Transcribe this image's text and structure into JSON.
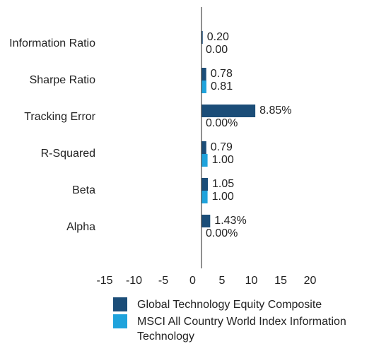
{
  "chart_data": {
    "type": "bar",
    "orientation": "horizontal",
    "categories": [
      "Information Ratio",
      "Sharpe Ratio",
      "Tracking Error",
      "R-Squared",
      "Beta",
      "Alpha"
    ],
    "series": [
      {
        "name": "Global Technology Equity Composite",
        "color": "#1b4d78",
        "values": [
          0.2,
          0.78,
          8.85,
          0.79,
          1.05,
          1.43
        ],
        "value_labels": [
          "0.20",
          "0.78",
          "8.85%",
          "0.79",
          "1.05",
          "1.43%"
        ]
      },
      {
        "name": "MSCI All Country World Index Information Technology",
        "color": "#1fa3dc",
        "values": [
          0.0,
          0.81,
          0.0,
          1.0,
          1.0,
          0.0
        ],
        "value_labels": [
          "0.00",
          "0.81",
          "0.00%",
          "1.00",
          "1.00",
          "0.00%"
        ]
      }
    ],
    "xlim": [
      -15,
      20
    ],
    "xticks": [
      -15,
      -10,
      -5,
      0,
      5,
      10,
      15,
      20
    ],
    "grid": false
  }
}
